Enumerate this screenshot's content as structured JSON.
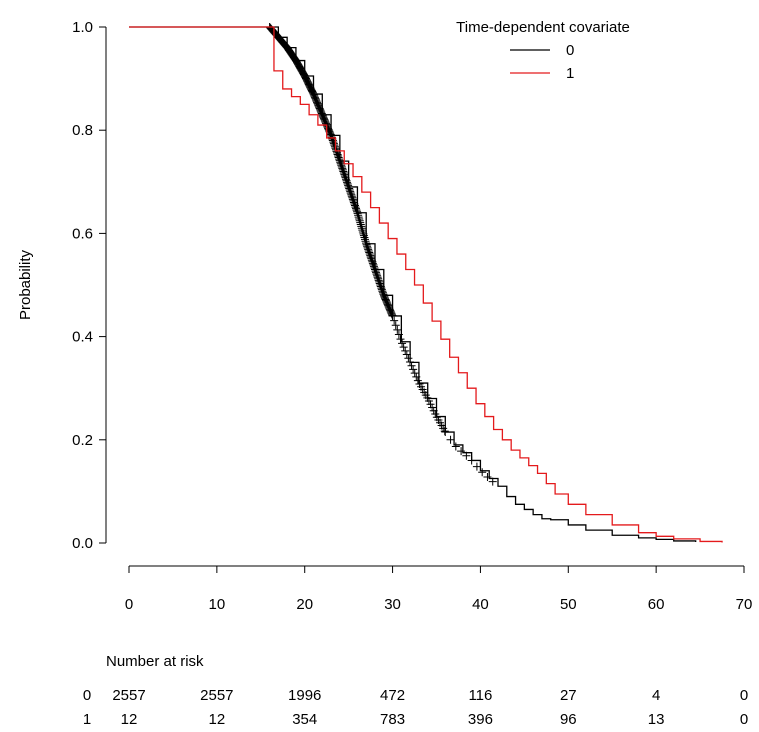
{
  "chart_data": {
    "type": "line",
    "subtype": "kaplan-meier",
    "title": "",
    "xlabel": "",
    "ylabel": "Probability",
    "xlim": [
      0,
      70
    ],
    "ylim": [
      0,
      1
    ],
    "x_ticks": [
      "0",
      "10",
      "20",
      "30",
      "40",
      "50",
      "60",
      "70"
    ],
    "y_ticks": [
      "0.0",
      "0.2",
      "0.4",
      "0.6",
      "0.8",
      "1.0"
    ],
    "grid": false,
    "legend": {
      "title": "Time-dependent covariate",
      "position": "top-right",
      "entries": [
        {
          "label": "0",
          "color": "#000000"
        },
        {
          "label": "1",
          "color": "#e41a1c"
        }
      ]
    },
    "series": [
      {
        "name": "0",
        "color": "#000000",
        "censor_marks": "dense between x=16 and x=42",
        "x": [
          0,
          16,
          17,
          18,
          19,
          20,
          21,
          22,
          23,
          24,
          25,
          26,
          27,
          28,
          29,
          30,
          31,
          32,
          33,
          34,
          35,
          36,
          37,
          38,
          39,
          40,
          41,
          42,
          43,
          44,
          45,
          46,
          47,
          48,
          50,
          52,
          55,
          58,
          60,
          62,
          64.5
        ],
        "y": [
          1.0,
          1.0,
          0.98,
          0.96,
          0.935,
          0.905,
          0.87,
          0.83,
          0.79,
          0.74,
          0.69,
          0.64,
          0.58,
          0.53,
          0.48,
          0.44,
          0.39,
          0.35,
          0.31,
          0.28,
          0.245,
          0.215,
          0.19,
          0.175,
          0.16,
          0.14,
          0.125,
          0.11,
          0.09,
          0.075,
          0.065,
          0.055,
          0.047,
          0.045,
          0.035,
          0.025,
          0.015,
          0.01,
          0.007,
          0.004,
          0.002
        ]
      },
      {
        "name": "1",
        "color": "#e41a1c",
        "x": [
          0,
          16.5,
          16.5,
          17.5,
          17.5,
          18.5,
          19.5,
          20.5,
          21.5,
          22.5,
          23.5,
          24.5,
          25.5,
          26.5,
          27.5,
          28.5,
          29.5,
          30.5,
          31.5,
          32.5,
          33.5,
          34.5,
          35.5,
          36.5,
          37.5,
          38.5,
          39.5,
          40.5,
          41.5,
          42.5,
          43.5,
          44.5,
          45.5,
          46.5,
          47.5,
          48.5,
          50,
          52,
          55,
          58,
          60,
          62,
          65,
          67.5
        ],
        "y": [
          1.0,
          1.0,
          0.915,
          0.915,
          0.88,
          0.865,
          0.85,
          0.83,
          0.81,
          0.785,
          0.76,
          0.735,
          0.71,
          0.68,
          0.65,
          0.62,
          0.59,
          0.56,
          0.53,
          0.5,
          0.465,
          0.43,
          0.395,
          0.36,
          0.33,
          0.3,
          0.27,
          0.245,
          0.22,
          0.2,
          0.18,
          0.165,
          0.15,
          0.135,
          0.115,
          0.095,
          0.075,
          0.055,
          0.035,
          0.02,
          0.013,
          0.008,
          0.003,
          0.001
        ]
      }
    ],
    "risk_table": {
      "title": "Number at risk",
      "times": [
        0,
        10,
        20,
        30,
        40,
        50,
        60,
        70
      ],
      "rows": [
        {
          "group": "0",
          "values": [
            "2557",
            "2557",
            "1996",
            "472",
            "116",
            "27",
            "4",
            "0"
          ]
        },
        {
          "group": "1",
          "values": [
            "12",
            "12",
            "354",
            "783",
            "396",
            "96",
            "13",
            "0"
          ]
        }
      ]
    }
  }
}
